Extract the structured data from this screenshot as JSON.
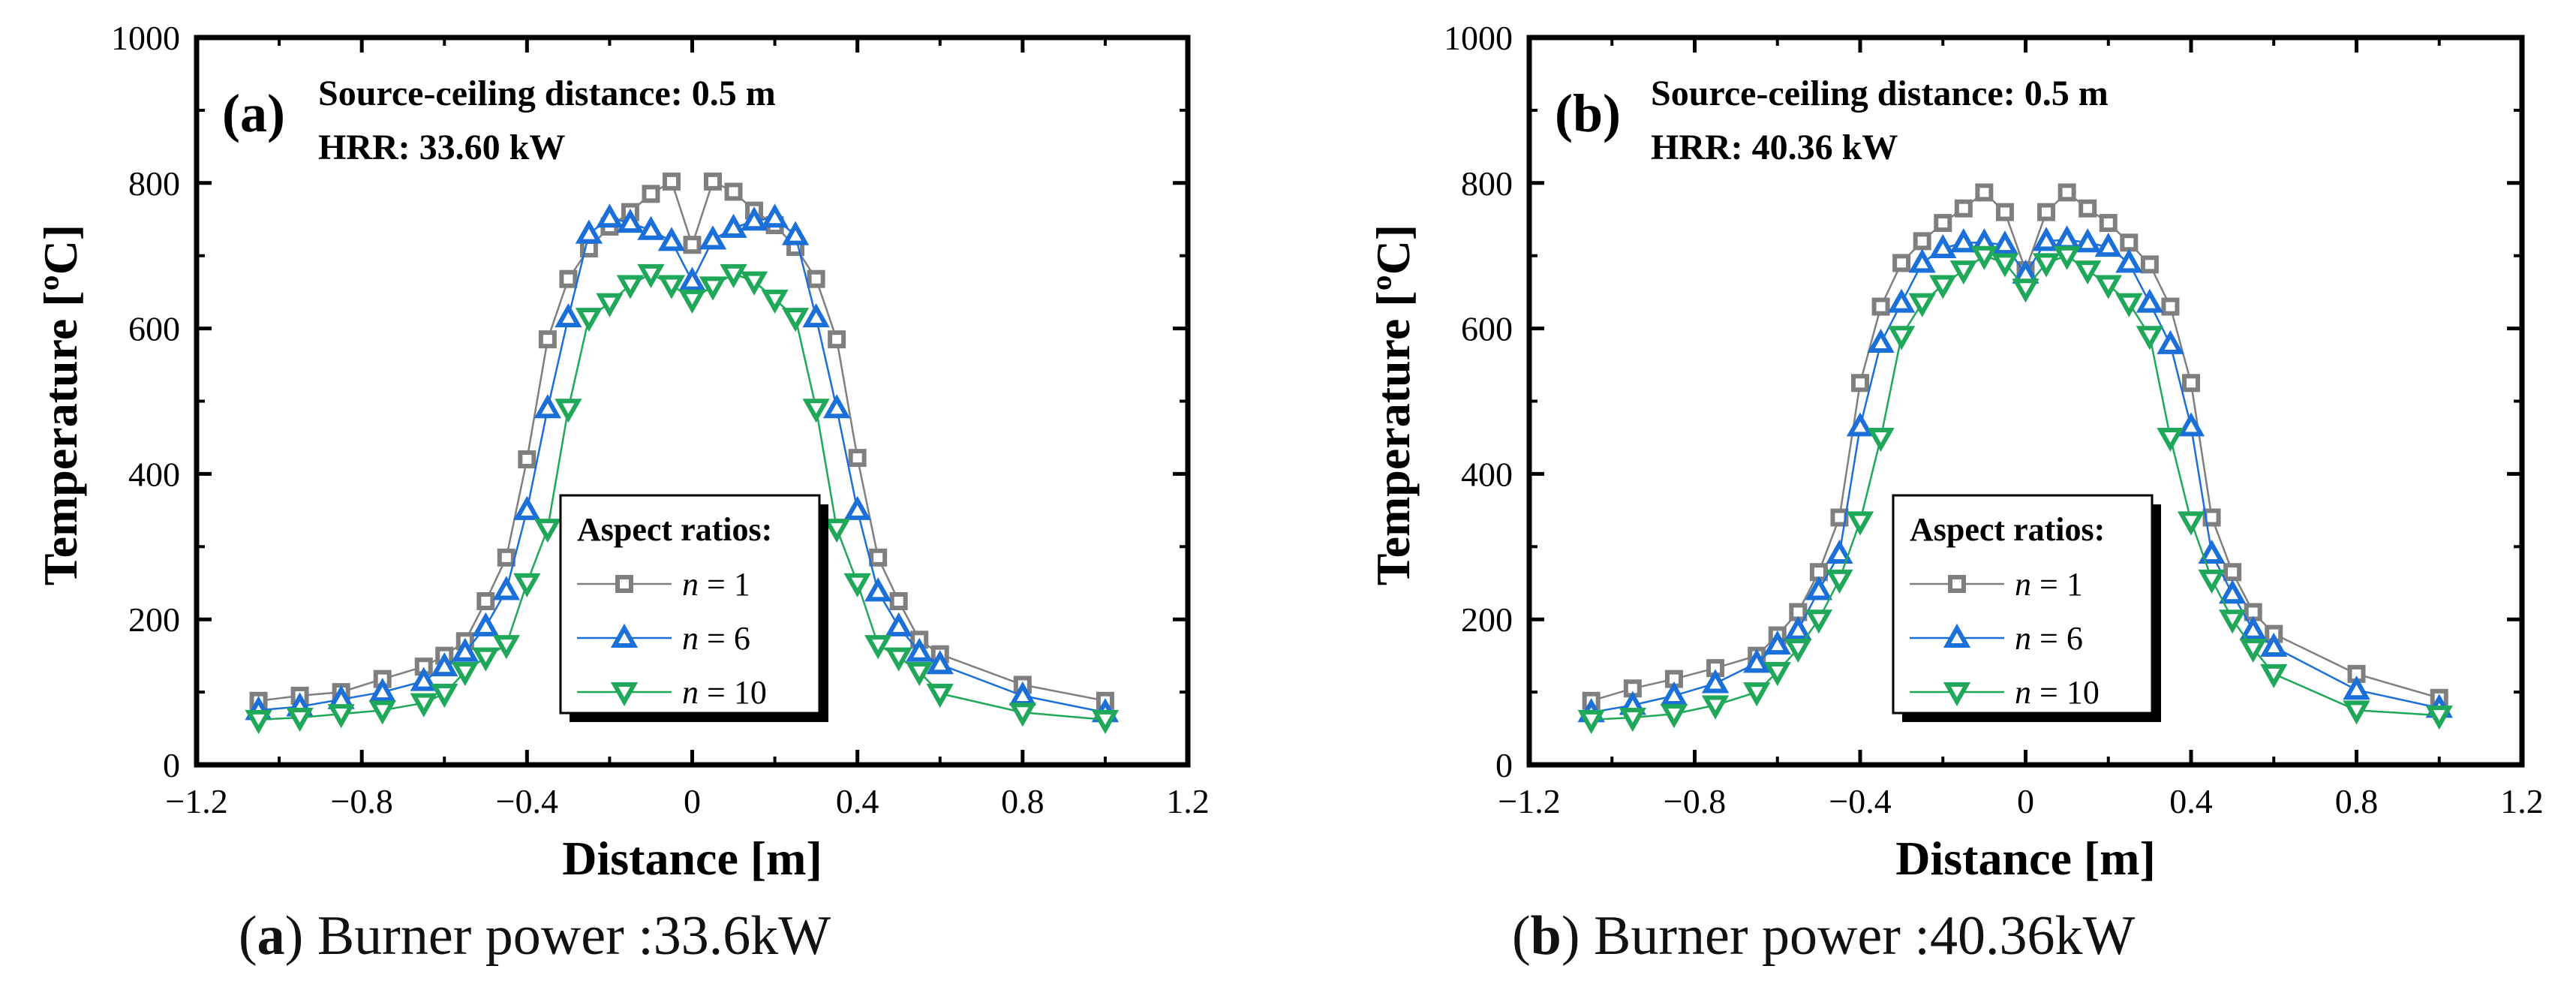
{
  "chart_data": [
    {
      "type": "line",
      "panel_letter": "(a)",
      "annotation_lines": [
        "Source-ceiling distance: 0.5 m",
        "HRR: 33.60 kW"
      ],
      "caption_letter": "a",
      "caption_text": " Burner power :33.6kW",
      "xlabel": "Distance [m]",
      "ylabel": "Temperature [ºC]",
      "xlim": [
        -1.2,
        1.2
      ],
      "ylim": [
        0,
        1000
      ],
      "xticks": [
        -1.2,
        -0.8,
        -0.4,
        0,
        0.4,
        0.8,
        1.2
      ],
      "xtick_labels": [
        "−1.2",
        "−0.8",
        "−0.4",
        "0",
        "0.4",
        "0.8",
        "1.2"
      ],
      "yticks": [
        0,
        200,
        400,
        600,
        800,
        1000
      ],
      "ytick_labels": [
        "0",
        "200",
        "400",
        "600",
        "800",
        "1000"
      ],
      "legend": {
        "title": "Aspect ratios:",
        "placement": "lower-right",
        "labels": [
          "n = 1",
          "n = 6",
          "n = 10"
        ]
      },
      "series": [
        {
          "name": "n = 1",
          "color": "#7f7f7f",
          "marker": "square",
          "points": [
            [
              -1.05,
              88
            ],
            [
              -0.95,
              95
            ],
            [
              -0.85,
              100
            ],
            [
              -0.75,
              118
            ],
            [
              -0.65,
              135
            ],
            [
              -0.6,
              150
            ],
            [
              -0.55,
              170
            ],
            [
              -0.5,
              225
            ],
            [
              -0.45,
              285
            ],
            [
              -0.4,
              420
            ],
            [
              -0.35,
              585
            ],
            [
              -0.3,
              668
            ],
            [
              -0.25,
              710
            ],
            [
              -0.2,
              740
            ],
            [
              -0.15,
              760
            ],
            [
              -0.1,
              785
            ],
            [
              -0.05,
              802
            ],
            [
              0,
              715
            ],
            [
              0.05,
              802
            ],
            [
              0.1,
              788
            ],
            [
              0.15,
              762
            ],
            [
              0.2,
              742
            ],
            [
              0.25,
              712
            ],
            [
              0.3,
              668
            ],
            [
              0.35,
              585
            ],
            [
              0.4,
              422
            ],
            [
              0.45,
              285
            ],
            [
              0.5,
              225
            ],
            [
              0.55,
              172
            ],
            [
              0.6,
              152
            ],
            [
              0.8,
              110
            ],
            [
              1.0,
              88
            ]
          ]
        },
        {
          "name": "n = 6",
          "color": "#1a6fd8",
          "marker": "triangle-up",
          "points": [
            [
              -1.05,
              75
            ],
            [
              -0.95,
              80
            ],
            [
              -0.85,
              90
            ],
            [
              -0.75,
              100
            ],
            [
              -0.65,
              115
            ],
            [
              -0.6,
              135
            ],
            [
              -0.55,
              155
            ],
            [
              -0.5,
              190
            ],
            [
              -0.45,
              240
            ],
            [
              -0.4,
              350
            ],
            [
              -0.35,
              490
            ],
            [
              -0.3,
              615
            ],
            [
              -0.25,
              730
            ],
            [
              -0.2,
              752
            ],
            [
              -0.15,
              745
            ],
            [
              -0.1,
              735
            ],
            [
              -0.05,
              720
            ],
            [
              0,
              665
            ],
            [
              0.05,
              722
            ],
            [
              0.1,
              738
            ],
            [
              0.15,
              748
            ],
            [
              0.2,
              752
            ],
            [
              0.25,
              728
            ],
            [
              0.3,
              615
            ],
            [
              0.35,
              490
            ],
            [
              0.4,
              350
            ],
            [
              0.45,
              238
            ],
            [
              0.5,
              190
            ],
            [
              0.55,
              155
            ],
            [
              0.6,
              138
            ],
            [
              0.8,
              95
            ],
            [
              1.0,
              72
            ]
          ]
        },
        {
          "name": "n = 10",
          "color": "#1fa85a",
          "marker": "triangle-down",
          "points": [
            [
              -1.05,
              62
            ],
            [
              -0.95,
              65
            ],
            [
              -0.85,
              70
            ],
            [
              -0.75,
              75
            ],
            [
              -0.65,
              85
            ],
            [
              -0.6,
              98
            ],
            [
              -0.55,
              128
            ],
            [
              -0.5,
              148
            ],
            [
              -0.45,
              165
            ],
            [
              -0.4,
              250
            ],
            [
              -0.35,
              325
            ],
            [
              -0.3,
              490
            ],
            [
              -0.25,
              615
            ],
            [
              -0.2,
              635
            ],
            [
              -0.15,
              660
            ],
            [
              -0.1,
              675
            ],
            [
              -0.05,
              660
            ],
            [
              0,
              640
            ],
            [
              0.05,
              658
            ],
            [
              0.1,
              675
            ],
            [
              0.15,
              665
            ],
            [
              0.2,
              640
            ],
            [
              0.25,
              615
            ],
            [
              0.3,
              490
            ],
            [
              0.35,
              325
            ],
            [
              0.4,
              250
            ],
            [
              0.45,
              165
            ],
            [
              0.5,
              148
            ],
            [
              0.55,
              128
            ],
            [
              0.6,
              98
            ],
            [
              0.8,
              72
            ],
            [
              1.0,
              62
            ]
          ]
        }
      ]
    },
    {
      "type": "line",
      "panel_letter": "(b)",
      "annotation_lines": [
        "Source-ceiling distance: 0.5 m",
        "HRR: 40.36 kW"
      ],
      "caption_letter": "b",
      "caption_text": " Burner power :40.36kW",
      "xlabel": "Distance [m]",
      "ylabel": "Temperature [ºC]",
      "xlim": [
        -1.2,
        1.2
      ],
      "ylim": [
        0,
        1000
      ],
      "xticks": [
        -1.2,
        -0.8,
        -0.4,
        0,
        0.4,
        0.8,
        1.2
      ],
      "xtick_labels": [
        "−1.2",
        "−0.8",
        "−0.4",
        "0",
        "0.4",
        "0.8",
        "1.2"
      ],
      "yticks": [
        0,
        200,
        400,
        600,
        800,
        1000
      ],
      "ytick_labels": [
        "0",
        "200",
        "400",
        "600",
        "800",
        "1000"
      ],
      "legend": {
        "title": "Aspect ratios:",
        "placement": "lower-right",
        "labels": [
          "n = 1",
          "n = 6",
          "n = 10"
        ]
      },
      "series": [
        {
          "name": "n = 1",
          "color": "#7f7f7f",
          "marker": "square",
          "points": [
            [
              -1.05,
              88
            ],
            [
              -0.95,
              105
            ],
            [
              -0.85,
              118
            ],
            [
              -0.75,
              133
            ],
            [
              -0.65,
              150
            ],
            [
              -0.6,
              178
            ],
            [
              -0.55,
              210
            ],
            [
              -0.5,
              265
            ],
            [
              -0.45,
              340
            ],
            [
              -0.4,
              525
            ],
            [
              -0.35,
              630
            ],
            [
              -0.3,
              690
            ],
            [
              -0.25,
              720
            ],
            [
              -0.2,
              745
            ],
            [
              -0.15,
              765
            ],
            [
              -0.1,
              787
            ],
            [
              -0.05,
              760
            ],
            [
              0,
              680
            ],
            [
              0.05,
              760
            ],
            [
              0.1,
              787
            ],
            [
              0.15,
              765
            ],
            [
              0.2,
              745
            ],
            [
              0.25,
              718
            ],
            [
              0.3,
              688
            ],
            [
              0.35,
              630
            ],
            [
              0.4,
              525
            ],
            [
              0.45,
              340
            ],
            [
              0.5,
              265
            ],
            [
              0.55,
              210
            ],
            [
              0.6,
              180
            ],
            [
              0.8,
              125
            ],
            [
              1.0,
              92
            ]
          ]
        },
        {
          "name": "n = 6",
          "color": "#1a6fd8",
          "marker": "triangle-up",
          "points": [
            [
              -1.05,
              72
            ],
            [
              -0.95,
              82
            ],
            [
              -0.85,
              95
            ],
            [
              -0.75,
              112
            ],
            [
              -0.65,
              140
            ],
            [
              -0.6,
              165
            ],
            [
              -0.55,
              185
            ],
            [
              -0.5,
              240
            ],
            [
              -0.45,
              290
            ],
            [
              -0.4,
              465
            ],
            [
              -0.35,
              580
            ],
            [
              -0.3,
              635
            ],
            [
              -0.25,
              690
            ],
            [
              -0.2,
              710
            ],
            [
              -0.15,
              718
            ],
            [
              -0.1,
              718
            ],
            [
              -0.05,
              715
            ],
            [
              0,
              675
            ],
            [
              0.05,
              720
            ],
            [
              0.1,
              722
            ],
            [
              0.15,
              718
            ],
            [
              0.2,
              712
            ],
            [
              0.25,
              690
            ],
            [
              0.3,
              635
            ],
            [
              0.35,
              578
            ],
            [
              0.4,
              465
            ],
            [
              0.45,
              290
            ],
            [
              0.5,
              235
            ],
            [
              0.55,
              185
            ],
            [
              0.6,
              162
            ],
            [
              0.8,
              103
            ],
            [
              1.0,
              78
            ]
          ]
        },
        {
          "name": "n = 10",
          "color": "#1fa85a",
          "marker": "triangle-down",
          "points": [
            [
              -1.05,
              62
            ],
            [
              -0.95,
              65
            ],
            [
              -0.85,
              70
            ],
            [
              -0.75,
              82
            ],
            [
              -0.65,
              100
            ],
            [
              -0.6,
              128
            ],
            [
              -0.55,
              160
            ],
            [
              -0.5,
              200
            ],
            [
              -0.45,
              255
            ],
            [
              -0.4,
              335
            ],
            [
              -0.35,
              450
            ],
            [
              -0.3,
              590
            ],
            [
              -0.25,
              635
            ],
            [
              -0.2,
              660
            ],
            [
              -0.15,
              680
            ],
            [
              -0.1,
              700
            ],
            [
              -0.05,
              690
            ],
            [
              0,
              655
            ],
            [
              0.05,
              690
            ],
            [
              0.1,
              700
            ],
            [
              0.15,
              680
            ],
            [
              0.2,
              660
            ],
            [
              0.25,
              635
            ],
            [
              0.3,
              590
            ],
            [
              0.35,
              450
            ],
            [
              0.4,
              335
            ],
            [
              0.45,
              255
            ],
            [
              0.5,
              200
            ],
            [
              0.55,
              160
            ],
            [
              0.6,
              125
            ],
            [
              0.8,
              75
            ],
            [
              1.0,
              68
            ]
          ]
        }
      ]
    }
  ]
}
